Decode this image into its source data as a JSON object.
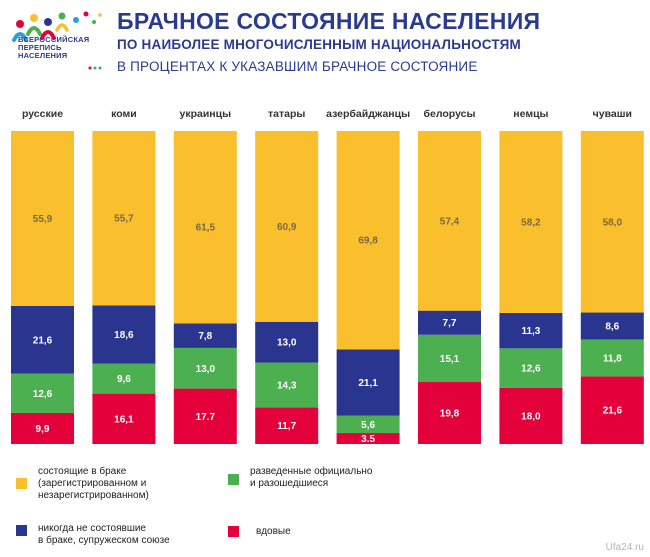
{
  "header": {
    "logo_text": "ВСЕРОССИЙСКАЯ\nПЕРЕПИСЬ\nНАСЕЛЕНИЯ",
    "title": "БРАЧНОЕ СОСТОЯНИЕ НАСЕЛЕНИЯ",
    "subtitle1": "ПО НАИБОЛЕЕ  МНОГОЧИСЛЕННЫМ  НАЦИОНАЛЬНОСТЯМ",
    "subtitle2": "В ПРОЦЕНТАХ  К УКАЗАВШИМ  БРАЧНОЕ  СОСТОЯНИЕ"
  },
  "chart_data": {
    "type": "bar",
    "stacked": true,
    "percent_stacked": true,
    "categories": [
      "русские",
      "коми",
      "украинцы",
      "татары",
      "азербайджанцы",
      "белорусы",
      "немцы",
      "чуваши"
    ],
    "series": [
      {
        "key": "widowed",
        "color": "#e4003a",
        "labels": [
          "9,9",
          "16,1",
          "17.7",
          "11,7",
          "3.5",
          "19,8",
          "18,0",
          "21,6"
        ],
        "values": [
          9.9,
          16.1,
          17.7,
          11.7,
          3.5,
          19.8,
          18.0,
          21.6
        ]
      },
      {
        "key": "divorced",
        "color": "#4caf50",
        "labels": [
          "12,6",
          "9,6",
          "13,0",
          "14,3",
          "5,6",
          "15,1",
          "12,6",
          "11,8"
        ],
        "values": [
          12.6,
          9.6,
          13.0,
          14.3,
          5.6,
          15.1,
          12.6,
          11.8
        ]
      },
      {
        "key": "never_married",
        "color": "#2a3590",
        "labels": [
          "21,6",
          "18,6",
          "7,8",
          "13,0",
          "21,1",
          "7,7",
          "11,3",
          "8,6"
        ],
        "values": [
          21.6,
          18.6,
          7.8,
          13.0,
          21.1,
          7.7,
          11.3,
          8.6
        ]
      },
      {
        "key": "married",
        "color": "#f9bf2c",
        "labels": [
          "55,9",
          "55,7",
          "61,5",
          "60,9",
          "69,8",
          "57,4",
          "58,2",
          "58,0"
        ],
        "values": [
          55.9,
          55.7,
          61.5,
          60.9,
          69.8,
          57.4,
          58.2,
          58.0
        ]
      }
    ]
  },
  "legend": [
    {
      "label": "состоящие в браке\n(зарегистрированном и\nнезарегистрированном)",
      "color": "#f9bf2c",
      "icon": "yellow-square"
    },
    {
      "label": "разведенные официально\nи разошедшиеся",
      "color": "#4caf50",
      "icon": "green-square"
    },
    {
      "label": "никогда не состоявшие\nв браке, супружеском союзе",
      "color": "#2a3590",
      "icon": "navy-square"
    },
    {
      "label": "вдовые",
      "color": "#e4003a",
      "icon": "red-square"
    }
  ],
  "watermark": "Ufa24.ru"
}
